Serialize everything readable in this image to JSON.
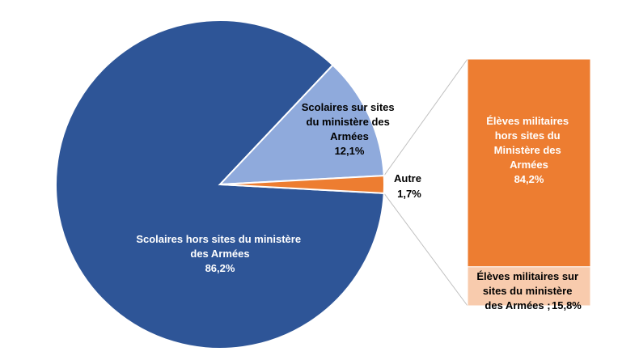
{
  "chart_data": {
    "type": "pie",
    "title": "",
    "pie": {
      "slices": [
        {
          "label": "Scolaires hors sites du ministère des Armées",
          "value_text": "86,2%",
          "value": 86.2,
          "color": "#2e5597",
          "label_color": "#ffffff"
        },
        {
          "label": "Scolaires sur sites du ministère des Armées",
          "value_text": "12,1%",
          "value": 12.1,
          "color": "#8faadc",
          "label_color": "#000000"
        },
        {
          "label": "Autre",
          "value_text": "1,7%",
          "value": 1.7,
          "color": "#ed7d31",
          "label_color": "#000000"
        }
      ]
    },
    "breakdown": {
      "of": "Autre",
      "segments": [
        {
          "label": "Élèves militaires hors sites du Ministère des Armées",
          "value_text": "84,2%",
          "value": 84.2,
          "color": "#ed7d31",
          "label_color": "#ffffff"
        },
        {
          "label": "Élèves militaires sur sites du ministère des Armées",
          "value_text": "15,8%",
          "value": 15.8,
          "color": "#f8cbad",
          "label_color": "#000000"
        }
      ]
    }
  }
}
